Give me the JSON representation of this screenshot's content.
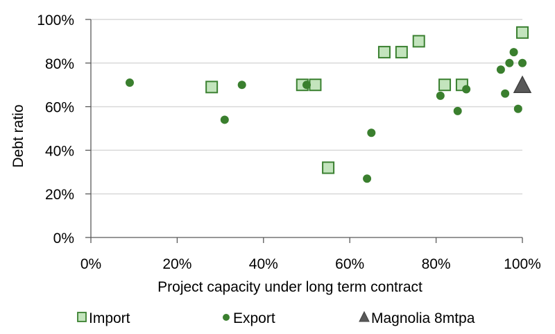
{
  "chart_data": {
    "type": "scatter",
    "title": "",
    "xlabel": "Project capacity under long term contract",
    "ylabel": "Debt ratio",
    "xlim": [
      0,
      100
    ],
    "ylim": [
      0,
      100
    ],
    "x_ticks": [
      "0%",
      "20%",
      "40%",
      "60%",
      "80%",
      "100%"
    ],
    "y_ticks": [
      "0%",
      "20%",
      "40%",
      "60%",
      "80%",
      "100%"
    ],
    "grid": "horizontal",
    "legend_position": "bottom",
    "series": [
      {
        "name": "Import",
        "marker": "square",
        "fill": "#c3e4bd",
        "stroke": "#3a8030",
        "points": [
          {
            "x": 28,
            "y": 69
          },
          {
            "x": 49,
            "y": 70
          },
          {
            "x": 52,
            "y": 70
          },
          {
            "x": 55,
            "y": 32
          },
          {
            "x": 68,
            "y": 85
          },
          {
            "x": 72,
            "y": 85
          },
          {
            "x": 76,
            "y": 90
          },
          {
            "x": 82,
            "y": 70
          },
          {
            "x": 86,
            "y": 70
          },
          {
            "x": 100,
            "y": 94
          }
        ]
      },
      {
        "name": "Export",
        "marker": "circle",
        "fill": "#3a7f2e",
        "stroke": "#3a7f2e",
        "points": [
          {
            "x": 9,
            "y": 71
          },
          {
            "x": 31,
            "y": 54
          },
          {
            "x": 35,
            "y": 70
          },
          {
            "x": 50,
            "y": 70
          },
          {
            "x": 64,
            "y": 27
          },
          {
            "x": 65,
            "y": 48
          },
          {
            "x": 81,
            "y": 65
          },
          {
            "x": 85,
            "y": 58
          },
          {
            "x": 87,
            "y": 68
          },
          {
            "x": 95,
            "y": 77
          },
          {
            "x": 96,
            "y": 66
          },
          {
            "x": 97,
            "y": 80
          },
          {
            "x": 98,
            "y": 85
          },
          {
            "x": 99,
            "y": 59
          },
          {
            "x": 100,
            "y": 80
          }
        ]
      },
      {
        "name": "Magnolia 8mtpa",
        "marker": "triangle",
        "fill": "#595959",
        "stroke": "#404040",
        "points": [
          {
            "x": 100,
            "y": 70
          }
        ]
      }
    ]
  }
}
